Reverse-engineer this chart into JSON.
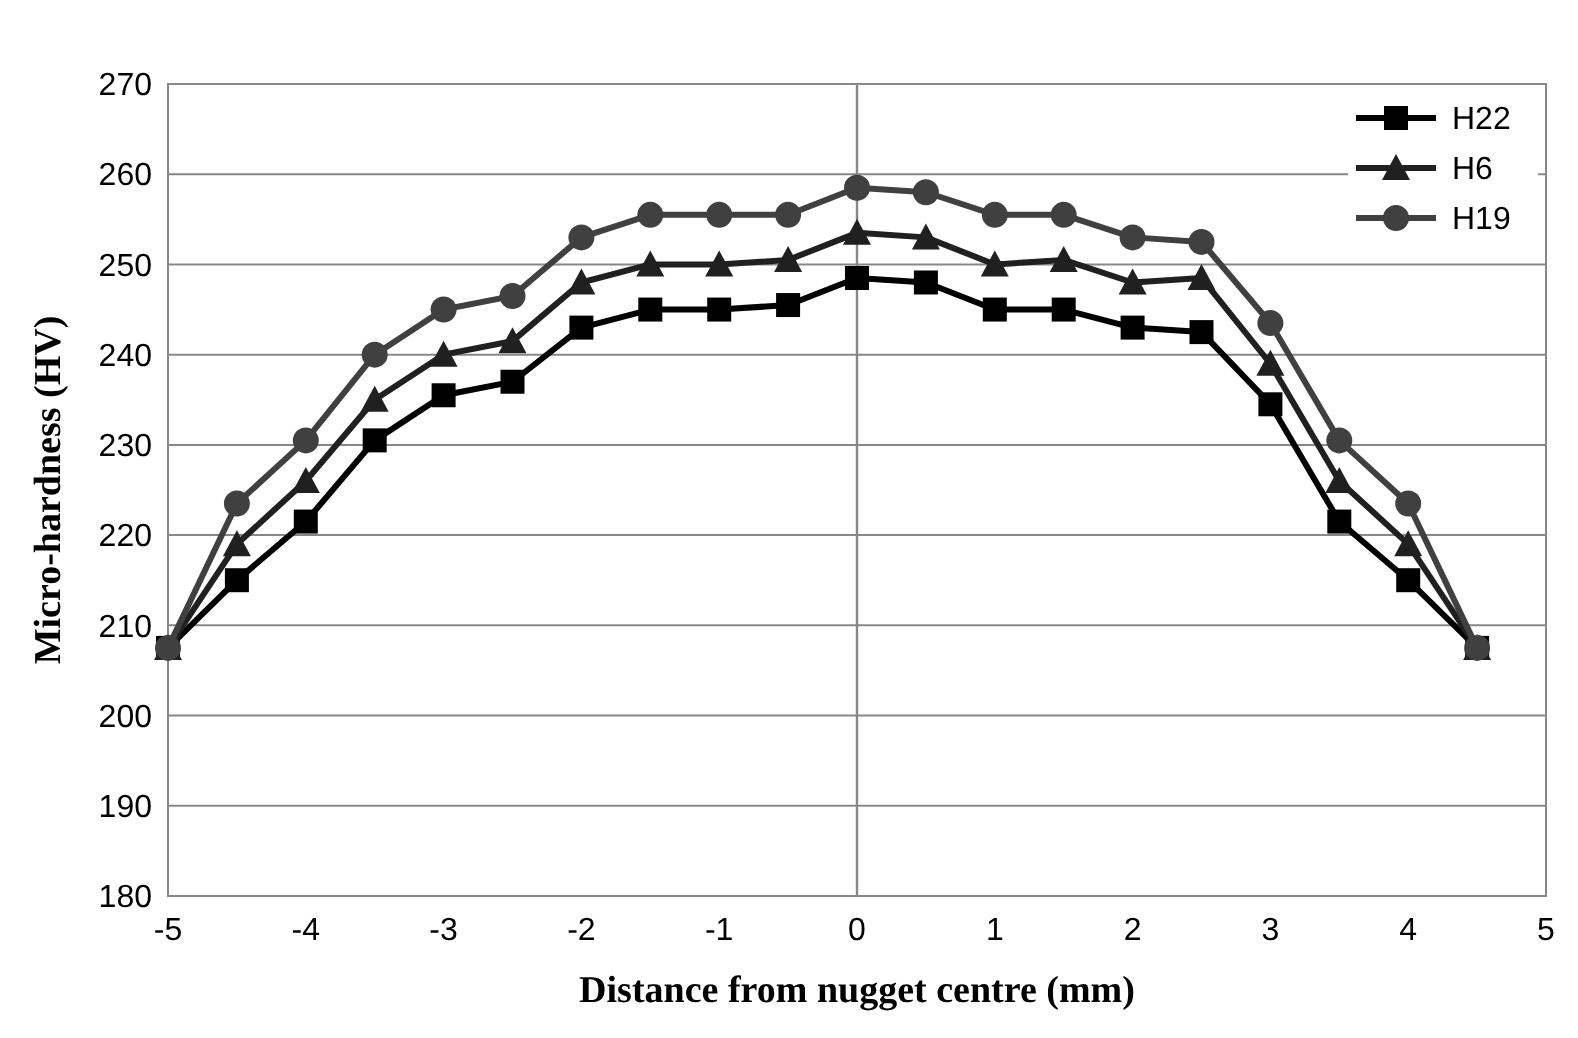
{
  "chart_data": {
    "type": "line",
    "xlabel": "Distance from nugget centre (mm)",
    "ylabel": "Micro-hardness  (HV)",
    "x": [
      -5,
      -4.5,
      -4,
      -3.5,
      -3,
      -2.5,
      -2,
      -1.5,
      -1,
      -0.5,
      0,
      0.5,
      1,
      1.5,
      2,
      2.5,
      3,
      3.5,
      4,
      4.5
    ],
    "series": [
      {
        "name": "H22",
        "color": "#000000",
        "marker": "square",
        "values": [
          207.5,
          215,
          221.5,
          230.5,
          235.5,
          237,
          243,
          245,
          245,
          245.5,
          248.5,
          248,
          245,
          245,
          243,
          242.5,
          234.5,
          221.5,
          215,
          207.5
        ]
      },
      {
        "name": "H6",
        "color": "#202020",
        "marker": "triangle",
        "values": [
          207.5,
          219,
          226,
          235,
          240,
          241.5,
          248,
          250,
          250,
          250.5,
          253.5,
          253,
          250,
          250.5,
          248,
          248.5,
          239,
          226,
          219,
          207.5
        ]
      },
      {
        "name": "H19",
        "color": "#404040",
        "marker": "circle",
        "values": [
          207.5,
          223.5,
          230.5,
          240,
          245,
          246.5,
          253,
          255.5,
          255.5,
          255.5,
          258.5,
          258,
          255.5,
          255.5,
          253,
          252.5,
          243.5,
          230.5,
          223.5,
          207.5
        ]
      }
    ],
    "xlim": [
      -5,
      5
    ],
    "xticks": [
      -5,
      -4,
      -3,
      -2,
      -1,
      0,
      1,
      2,
      3,
      4,
      5
    ],
    "ylim": [
      180,
      270
    ],
    "yticks": [
      180,
      190,
      200,
      210,
      220,
      230,
      240,
      250,
      260,
      270
    ],
    "grid": "y",
    "legend": "top right",
    "line_style": "solid",
    "ref_lines": [
      {
        "axis": "x",
        "value": 0,
        "color": "#888888"
      }
    ]
  }
}
